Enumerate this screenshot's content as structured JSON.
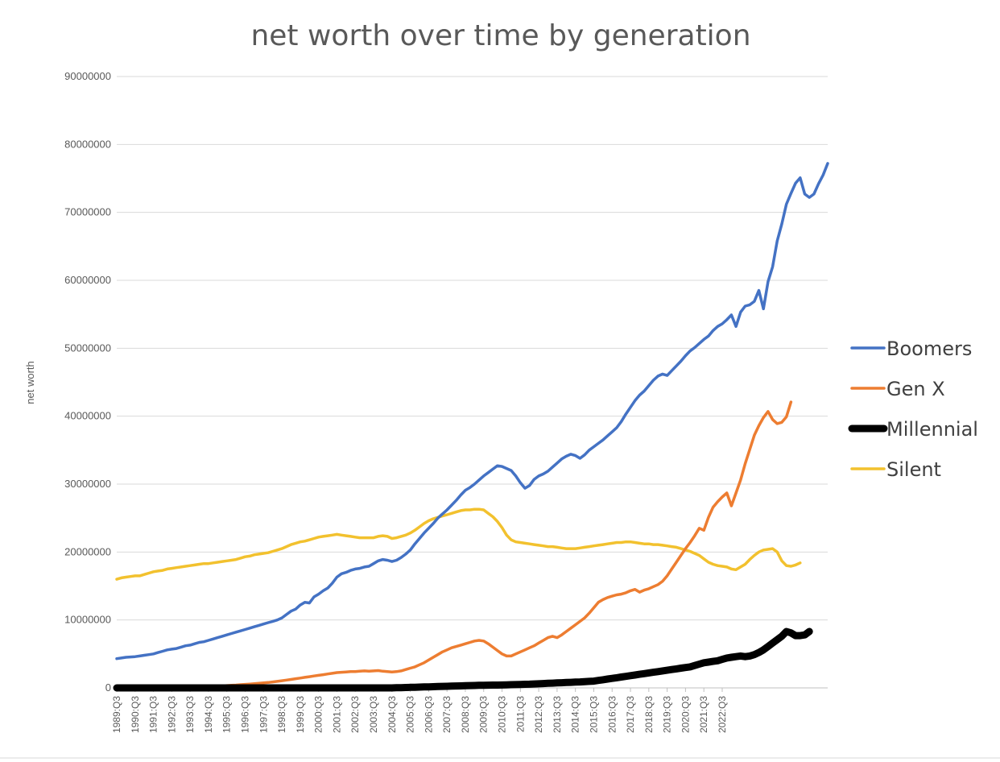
{
  "chart_data": {
    "type": "line",
    "title": "net worth over time by generation",
    "xlabel": "",
    "ylabel": "net worth",
    "ylim": [
      0,
      90000000
    ],
    "yticks": [
      0,
      10000000,
      20000000,
      30000000,
      40000000,
      50000000,
      60000000,
      70000000,
      80000000,
      90000000
    ],
    "x_start_label": "1989:Q3",
    "x_tick_labels": [
      "1989:Q3",
      "1990:Q3",
      "1991:Q3",
      "1992:Q3",
      "1993:Q3",
      "1994:Q3",
      "1995:Q3",
      "1996:Q3",
      "1997:Q3",
      "1998:Q3",
      "1999:Q3",
      "2000:Q3",
      "2001:Q3",
      "2002:Q3",
      "2003:Q3",
      "2004:Q3",
      "2005:Q3",
      "2006:Q3",
      "2007:Q3",
      "2008:Q3",
      "2009:Q3",
      "2010:Q3",
      "2011:Q3",
      "2012:Q3",
      "2013:Q3",
      "2014:Q3",
      "2015:Q3",
      "2016:Q3",
      "2017:Q3",
      "2018:Q3",
      "2019:Q3",
      "2020:Q3",
      "2021:Q3",
      "2022:Q3"
    ],
    "grid": true,
    "legend_position": "right",
    "series": [
      {
        "name": "Boomers",
        "color": "#4472C4",
        "width": "thin",
        "values": [
          4300000,
          4400000,
          4500000,
          4550000,
          4600000,
          4700000,
          4800000,
          4900000,
          5000000,
          5200000,
          5400000,
          5600000,
          5700000,
          5800000,
          6000000,
          6200000,
          6300000,
          6500000,
          6700000,
          6800000,
          7000000,
          7200000,
          7400000,
          7600000,
          7800000,
          8000000,
          8200000,
          8400000,
          8600000,
          8800000,
          9000000,
          9200000,
          9400000,
          9600000,
          9800000,
          10000000,
          10300000,
          10800000,
          11300000,
          11600000,
          12200000,
          12600000,
          12500000,
          13400000,
          13800000,
          14300000,
          14700000,
          15400000,
          16300000,
          16800000,
          17000000,
          17300000,
          17500000,
          17600000,
          17800000,
          17900000,
          18300000,
          18700000,
          18900000,
          18800000,
          18600000,
          18800000,
          19200000,
          19700000,
          20300000,
          21200000,
          22000000,
          22800000,
          23500000,
          24200000,
          25000000,
          25600000,
          26200000,
          26900000,
          27600000,
          28400000,
          29100000,
          29500000,
          30000000,
          30600000,
          31200000,
          31700000,
          32200000,
          32700000,
          32600000,
          32300000,
          32000000,
          31200000,
          30200000,
          29400000,
          29800000,
          30700000,
          31200000,
          31500000,
          31900000,
          32500000,
          33100000,
          33700000,
          34100000,
          34400000,
          34200000,
          33800000,
          34300000,
          35000000,
          35500000,
          36000000,
          36500000,
          37100000,
          37700000,
          38300000,
          39200000,
          40300000,
          41300000,
          42300000,
          43100000,
          43700000,
          44500000,
          45300000,
          45900000,
          46200000,
          46000000,
          46700000,
          47400000,
          48100000,
          48900000,
          49600000,
          50100000,
          50700000,
          51300000,
          51800000,
          52600000,
          53200000,
          53600000,
          54200000,
          54900000,
          53200000,
          55300000,
          56200000,
          56400000,
          56900000,
          58500000,
          55800000,
          59800000,
          62000000,
          65800000,
          68300000,
          71200000,
          72800000,
          74300000,
          75100000,
          72700000,
          72200000,
          72700000,
          74200000,
          75500000,
          77200000
        ]
      },
      {
        "name": "Gen X",
        "color": "#ED7D31",
        "width": "thin",
        "values": [
          0,
          0,
          0,
          0,
          0,
          0,
          0,
          0,
          0,
          0,
          20000,
          30000,
          40000,
          50000,
          60000,
          80000,
          100000,
          120000,
          140000,
          170000,
          200000,
          230000,
          260000,
          300000,
          340000,
          380000,
          420000,
          470000,
          520000,
          570000,
          620000,
          680000,
          740000,
          800000,
          880000,
          960000,
          1050000,
          1150000,
          1250000,
          1350000,
          1450000,
          1550000,
          1650000,
          1750000,
          1850000,
          1950000,
          2050000,
          2150000,
          2250000,
          2300000,
          2350000,
          2400000,
          2400000,
          2450000,
          2500000,
          2450000,
          2500000,
          2550000,
          2450000,
          2400000,
          2350000,
          2400000,
          2500000,
          2700000,
          2900000,
          3100000,
          3400000,
          3700000,
          4100000,
          4500000,
          4900000,
          5300000,
          5600000,
          5900000,
          6100000,
          6300000,
          6500000,
          6700000,
          6900000,
          7000000,
          6900000,
          6500000,
          6000000,
          5500000,
          5000000,
          4700000,
          4700000,
          5000000,
          5300000,
          5600000,
          5900000,
          6200000,
          6600000,
          7000000,
          7400000,
          7600000,
          7400000,
          7800000,
          8300000,
          8800000,
          9300000,
          9800000,
          10300000,
          11000000,
          11800000,
          12600000,
          13000000,
          13300000,
          13500000,
          13700000,
          13800000,
          14000000,
          14300000,
          14500000,
          14100000,
          14400000,
          14600000,
          14900000,
          15200000,
          15700000,
          16500000,
          17500000,
          18500000,
          19500000,
          20500000,
          21400000,
          22400000,
          23500000,
          23200000,
          25100000,
          26600000,
          27400000,
          28100000,
          28700000,
          26800000,
          28700000,
          30600000,
          33000000,
          35100000,
          37200000,
          38600000,
          39800000,
          40700000,
          39500000,
          38900000,
          39100000,
          39900000,
          42100000
        ]
      },
      {
        "name": "Millennial",
        "color": "#000000",
        "width": "thick",
        "values": [
          0,
          0,
          0,
          0,
          0,
          0,
          0,
          0,
          0,
          0,
          0,
          0,
          0,
          0,
          0,
          0,
          0,
          0,
          0,
          0,
          0,
          0,
          0,
          0,
          0,
          0,
          0,
          0,
          0,
          0,
          0,
          0,
          0,
          0,
          0,
          0,
          0,
          0,
          0,
          0,
          0,
          0,
          0,
          0,
          0,
          0,
          0,
          0,
          0,
          0,
          0,
          0,
          0,
          0,
          0,
          0,
          0,
          0,
          0,
          0,
          0,
          20000,
          40000,
          60000,
          80000,
          100000,
          120000,
          140000,
          160000,
          180000,
          200000,
          220000,
          240000,
          260000,
          280000,
          300000,
          320000,
          340000,
          360000,
          380000,
          390000,
          400000,
          410000,
          420000,
          430000,
          450000,
          470000,
          490000,
          510000,
          530000,
          550000,
          580000,
          610000,
          640000,
          670000,
          700000,
          730000,
          760000,
          790000,
          820000,
          850000,
          880000,
          920000,
          960000,
          1000000,
          1100000,
          1200000,
          1300000,
          1400000,
          1500000,
          1600000,
          1700000,
          1800000,
          1900000,
          2000000,
          2100000,
          2200000,
          2300000,
          2400000,
          2500000,
          2600000,
          2700000,
          2800000,
          2900000,
          3000000,
          3100000,
          3300000,
          3500000,
          3700000,
          3800000,
          3900000,
          4000000,
          4200000,
          4400000,
          4500000,
          4600000,
          4700000,
          4600000,
          4700000,
          4900000,
          5200000,
          5600000,
          6100000,
          6600000,
          7100000,
          7600000,
          8300000,
          8100000,
          7700000,
          7700000,
          7800000,
          8300000
        ]
      },
      {
        "name": "Silent",
        "color": "#F2C12E",
        "width": "thin",
        "values": [
          16000000,
          16200000,
          16300000,
          16400000,
          16500000,
          16500000,
          16700000,
          16900000,
          17100000,
          17200000,
          17300000,
          17500000,
          17600000,
          17700000,
          17800000,
          17900000,
          18000000,
          18100000,
          18200000,
          18300000,
          18300000,
          18400000,
          18500000,
          18600000,
          18700000,
          18800000,
          18900000,
          19100000,
          19300000,
          19400000,
          19600000,
          19700000,
          19800000,
          19900000,
          20100000,
          20300000,
          20500000,
          20800000,
          21100000,
          21300000,
          21500000,
          21600000,
          21800000,
          22000000,
          22200000,
          22300000,
          22400000,
          22500000,
          22600000,
          22500000,
          22400000,
          22300000,
          22200000,
          22100000,
          22100000,
          22100000,
          22100000,
          22300000,
          22400000,
          22300000,
          22000000,
          22100000,
          22300000,
          22500000,
          22800000,
          23200000,
          23700000,
          24200000,
          24600000,
          24900000,
          25100000,
          25300000,
          25500000,
          25700000,
          25900000,
          26100000,
          26200000,
          26200000,
          26300000,
          26300000,
          26200000,
          25700000,
          25200000,
          24500000,
          23600000,
          22500000,
          21800000,
          21500000,
          21400000,
          21300000,
          21200000,
          21100000,
          21000000,
          20900000,
          20800000,
          20800000,
          20700000,
          20600000,
          20500000,
          20500000,
          20500000,
          20600000,
          20700000,
          20800000,
          20900000,
          21000000,
          21100000,
          21200000,
          21300000,
          21400000,
          21400000,
          21500000,
          21500000,
          21400000,
          21300000,
          21200000,
          21200000,
          21100000,
          21100000,
          21000000,
          20900000,
          20800000,
          20700000,
          20500000,
          20300000,
          20100000,
          19800000,
          19500000,
          19000000,
          18500000,
          18200000,
          18000000,
          17900000,
          17800000,
          17500000,
          17400000,
          17800000,
          18200000,
          18900000,
          19500000,
          20000000,
          20300000,
          20400000,
          20500000,
          20000000,
          18700000,
          18000000,
          17900000,
          18100000,
          18400000
        ]
      }
    ]
  }
}
